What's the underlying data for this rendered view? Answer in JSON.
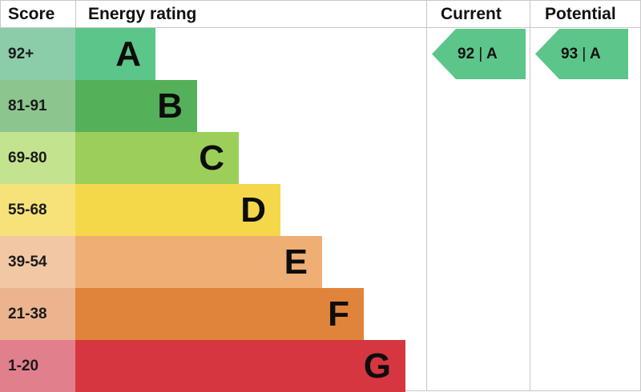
{
  "headers": {
    "score": "Score",
    "energy_rating": "Energy rating",
    "current": "Current",
    "potential": "Potential"
  },
  "chart_data": {
    "type": "bar",
    "categories": [
      "A",
      "B",
      "C",
      "D",
      "E",
      "F",
      "G"
    ],
    "score_ranges": [
      "92+",
      "81-91",
      "69-80",
      "55-68",
      "39-54",
      "21-38",
      "1-20"
    ],
    "band_colors": [
      "#5cc58a",
      "#55b05a",
      "#9ccf5a",
      "#f5d74a",
      "#eeae74",
      "#e0843b",
      "#d6363f"
    ],
    "score_colors": [
      "#8ccda9",
      "#8cc58e",
      "#c4e38f",
      "#f7e27a",
      "#f2c8a4",
      "#ebb48e",
      "#e27f8d"
    ],
    "current": {
      "score": 92,
      "band": "A",
      "label_number": "92",
      "label_band": "A",
      "color": "#5cc58a"
    },
    "potential": {
      "score": 93,
      "band": "A",
      "label_number": "93",
      "label_band": "A",
      "color": "#5cc58a"
    }
  }
}
